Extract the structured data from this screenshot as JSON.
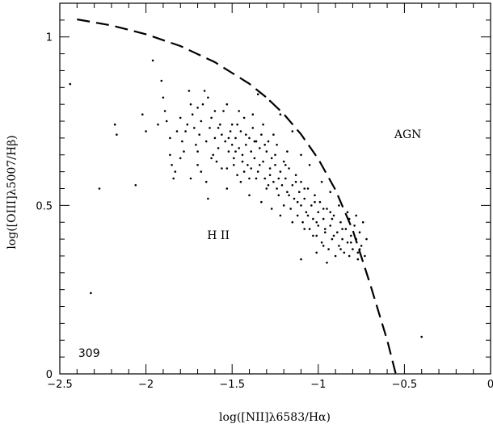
{
  "chart_data": {
    "type": "scatter",
    "xlabel": "log([NII]λ6583/Hα)",
    "ylabel": "log([OIII]λ5007/Hβ)",
    "xlim": [
      -2.5,
      0
    ],
    "ylim": [
      0,
      1.1
    ],
    "xticks": [
      -2.5,
      -2,
      -1.5,
      -1,
      -0.5,
      0
    ],
    "xtick_labels": [
      "−2.5",
      "−2",
      "−1.5",
      "−1",
      "−0.5",
      "0"
    ],
    "yticks": [
      0,
      0.5,
      1
    ],
    "ytick_labels": [
      "0",
      "0.5",
      "1"
    ],
    "grid": false,
    "annotations": [
      {
        "text": "AGN",
        "x": -0.48,
        "y": 0.7
      },
      {
        "text": "H II",
        "x": -1.58,
        "y": 0.4
      },
      {
        "text": "309",
        "x": -2.33,
        "y": 0.05
      }
    ],
    "boundary_curve": {
      "style": "dashed",
      "points": [
        [
          -2.4,
          1.052
        ],
        [
          -2.2,
          1.034
        ],
        [
          -2.0,
          1.008
        ],
        [
          -1.8,
          0.973
        ],
        [
          -1.6,
          0.925
        ],
        [
          -1.4,
          0.861
        ],
        [
          -1.3,
          0.82
        ],
        [
          -1.2,
          0.771
        ],
        [
          -1.1,
          0.711
        ],
        [
          -1.0,
          0.638
        ],
        [
          -0.9,
          0.546
        ],
        [
          -0.8,
          0.427
        ],
        [
          -0.7,
          0.268
        ],
        [
          -0.6,
          0.1
        ],
        [
          -0.55,
          0.0
        ]
      ]
    },
    "series": [
      {
        "points": [
          [
            -2.44,
            0.86
          ],
          [
            -2.32,
            0.24
          ],
          [
            -2.27,
            0.55
          ],
          [
            -2.18,
            0.74
          ],
          [
            -2.17,
            0.71
          ],
          [
            -2.06,
            0.56
          ],
          [
            -2.02,
            0.77
          ],
          [
            -2.0,
            0.72
          ],
          [
            -1.96,
            0.93
          ],
          [
            -1.93,
            0.74
          ],
          [
            -0.4,
            0.11
          ],
          [
            -1.91,
            0.87
          ],
          [
            -1.9,
            0.82
          ],
          [
            -1.89,
            0.78
          ],
          [
            -1.88,
            0.75
          ],
          [
            -1.86,
            0.7
          ],
          [
            -1.86,
            0.65
          ],
          [
            -1.85,
            0.62
          ],
          [
            -1.84,
            0.58
          ],
          [
            -1.83,
            0.6
          ],
          [
            -1.82,
            0.72
          ],
          [
            -1.8,
            0.76
          ],
          [
            -1.79,
            0.69
          ],
          [
            -1.78,
            0.66
          ],
          [
            -1.77,
            0.72
          ],
          [
            -1.76,
            0.74
          ],
          [
            -1.75,
            0.84
          ],
          [
            -1.74,
            0.8
          ],
          [
            -1.73,
            0.77
          ],
          [
            -1.72,
            0.73
          ],
          [
            -1.71,
            0.68
          ],
          [
            -1.7,
            0.66
          ],
          [
            -1.7,
            0.62
          ],
          [
            -1.69,
            0.71
          ],
          [
            -1.68,
            0.75
          ],
          [
            -1.67,
            0.8
          ],
          [
            -1.66,
            0.84
          ],
          [
            -1.65,
            0.69
          ],
          [
            -1.65,
            0.57
          ],
          [
            -1.64,
            0.52
          ],
          [
            -1.63,
            0.73
          ],
          [
            -1.62,
            0.76
          ],
          [
            -1.61,
            0.65
          ],
          [
            -1.6,
            0.7
          ],
          [
            -1.59,
            0.63
          ],
          [
            -1.58,
            0.67
          ],
          [
            -1.57,
            0.74
          ],
          [
            -1.56,
            0.71
          ],
          [
            -1.55,
            0.78
          ],
          [
            -1.54,
            0.69
          ],
          [
            -1.53,
            0.61
          ],
          [
            -1.52,
            0.66
          ],
          [
            -1.51,
            0.72
          ],
          [
            -1.5,
            0.68
          ],
          [
            -1.5,
            0.74
          ],
          [
            -1.49,
            0.64
          ],
          [
            -1.48,
            0.7
          ],
          [
            -1.47,
            0.59
          ],
          [
            -1.46,
            0.67
          ],
          [
            -1.45,
            0.72
          ],
          [
            -1.44,
            0.65
          ],
          [
            -1.43,
            0.76
          ],
          [
            -1.42,
            0.68
          ],
          [
            -1.41,
            0.62
          ],
          [
            -1.4,
            0.7
          ],
          [
            -1.4,
            0.58
          ],
          [
            -1.39,
            0.66
          ],
          [
            -1.38,
            0.73
          ],
          [
            -1.37,
            0.64
          ],
          [
            -1.36,
            0.69
          ],
          [
            -1.35,
            0.6
          ],
          [
            -1.34,
            0.67
          ],
          [
            -1.33,
            0.71
          ],
          [
            -1.32,
            0.63
          ],
          [
            -1.31,
            0.58
          ],
          [
            -1.3,
            0.66
          ],
          [
            -1.3,
            0.55
          ],
          [
            -1.29,
            0.69
          ],
          [
            -1.28,
            0.61
          ],
          [
            -1.27,
            0.64
          ],
          [
            -1.26,
            0.57
          ],
          [
            -1.25,
            0.62
          ],
          [
            -1.24,
            0.68
          ],
          [
            -1.23,
            0.53
          ],
          [
            -1.22,
            0.6
          ],
          [
            -1.21,
            0.56
          ],
          [
            -1.2,
            0.63
          ],
          [
            -1.2,
            0.5
          ],
          [
            -1.19,
            0.58
          ],
          [
            -1.18,
            0.54
          ],
          [
            -1.17,
            0.61
          ],
          [
            -1.16,
            0.49
          ],
          [
            -1.15,
            0.56
          ],
          [
            -1.14,
            0.52
          ],
          [
            -1.13,
            0.59
          ],
          [
            -1.12,
            0.47
          ],
          [
            -1.11,
            0.54
          ],
          [
            -1.1,
            0.5
          ],
          [
            -1.1,
            0.57
          ],
          [
            -1.09,
            0.45
          ],
          [
            -1.08,
            0.52
          ],
          [
            -1.07,
            0.48
          ],
          [
            -1.06,
            0.55
          ],
          [
            -1.05,
            0.43
          ],
          [
            -1.04,
            0.5
          ],
          [
            -1.03,
            0.46
          ],
          [
            -1.02,
            0.53
          ],
          [
            -1.01,
            0.41
          ],
          [
            -1.0,
            0.48
          ],
          [
            -1.0,
            0.44
          ],
          [
            -0.99,
            0.51
          ],
          [
            -0.98,
            0.39
          ],
          [
            -0.97,
            0.46
          ],
          [
            -0.96,
            0.42
          ],
          [
            -0.95,
            0.49
          ],
          [
            -0.94,
            0.37
          ],
          [
            -0.93,
            0.44
          ],
          [
            -0.92,
            0.4
          ],
          [
            -0.91,
            0.47
          ],
          [
            -0.9,
            0.35
          ],
          [
            -0.89,
            0.42
          ],
          [
            -0.88,
            0.38
          ],
          [
            -0.87,
            0.45
          ],
          [
            -0.86,
            0.4
          ],
          [
            -0.85,
            0.36
          ],
          [
            -0.84,
            0.43
          ],
          [
            -0.83,
            0.39
          ],
          [
            -0.82,
            0.46
          ],
          [
            -0.81,
            0.41
          ],
          [
            -0.8,
            0.37
          ],
          [
            -0.79,
            0.44
          ],
          [
            -0.78,
            0.4
          ],
          [
            -0.77,
            0.36
          ],
          [
            -0.76,
            0.42
          ],
          [
            -0.75,
            0.38
          ],
          [
            -0.74,
            0.45
          ],
          [
            -0.73,
            0.35
          ],
          [
            -0.72,
            0.4
          ],
          [
            -1.35,
            0.83
          ],
          [
            -1.28,
            0.81
          ],
          [
            -1.22,
            0.77
          ],
          [
            -1.15,
            0.72
          ],
          [
            -1.1,
            0.65
          ],
          [
            -1.05,
            0.62
          ],
          [
            -0.98,
            0.57
          ],
          [
            -0.93,
            0.54
          ],
          [
            -0.88,
            0.5
          ],
          [
            -0.83,
            0.48
          ],
          [
            -0.78,
            0.47
          ],
          [
            -0.95,
            0.33
          ],
          [
            -1.1,
            0.34
          ],
          [
            -1.01,
            0.36
          ],
          [
            -1.46,
            0.78
          ],
          [
            -1.38,
            0.77
          ],
          [
            -1.32,
            0.74
          ],
          [
            -1.26,
            0.71
          ],
          [
            -1.18,
            0.66
          ],
          [
            -1.53,
            0.55
          ],
          [
            -1.45,
            0.57
          ],
          [
            -1.4,
            0.53
          ],
          [
            -1.33,
            0.51
          ],
          [
            -1.27,
            0.49
          ],
          [
            -1.22,
            0.47
          ],
          [
            -1.15,
            0.45
          ],
          [
            -1.08,
            0.43
          ],
          [
            -1.03,
            0.41
          ],
          [
            -0.97,
            0.38
          ],
          [
            -1.56,
            0.61
          ],
          [
            -1.49,
            0.62
          ],
          [
            -1.43,
            0.6
          ],
          [
            -1.36,
            0.58
          ],
          [
            -1.29,
            0.56
          ],
          [
            -1.24,
            0.55
          ],
          [
            -1.62,
            0.64
          ],
          [
            -1.68,
            0.6
          ],
          [
            -1.74,
            0.58
          ],
          [
            -1.8,
            0.64
          ],
          [
            -1.6,
            0.78
          ],
          [
            -1.53,
            0.8
          ],
          [
            -1.47,
            0.74
          ],
          [
            -1.42,
            0.71
          ],
          [
            -1.37,
            0.69
          ],
          [
            -1.31,
            0.68
          ],
          [
            -1.25,
            0.65
          ],
          [
            -1.19,
            0.62
          ],
          [
            -1.13,
            0.57
          ],
          [
            -1.08,
            0.55
          ],
          [
            -1.02,
            0.51
          ],
          [
            -0.97,
            0.49
          ],
          [
            -0.92,
            0.46
          ],
          [
            -0.86,
            0.43
          ],
          [
            -0.81,
            0.39
          ],
          [
            -0.76,
            0.37
          ],
          [
            -1.7,
            0.79
          ],
          [
            -1.64,
            0.82
          ],
          [
            -1.58,
            0.73
          ],
          [
            -1.52,
            0.7
          ],
          [
            -1.48,
            0.66
          ],
          [
            -1.44,
            0.63
          ],
          [
            -1.39,
            0.61
          ],
          [
            -1.34,
            0.62
          ],
          [
            -1.28,
            0.59
          ],
          [
            -1.23,
            0.58
          ],
          [
            -1.17,
            0.53
          ],
          [
            -1.12,
            0.51
          ],
          [
            -1.06,
            0.47
          ],
          [
            -1.01,
            0.45
          ],
          [
            -0.96,
            0.43
          ],
          [
            -0.91,
            0.41
          ],
          [
            -0.87,
            0.37
          ],
          [
            -0.82,
            0.35
          ],
          [
            -0.77,
            0.34
          ],
          [
            -0.93,
            0.48
          ]
        ]
      }
    ]
  }
}
